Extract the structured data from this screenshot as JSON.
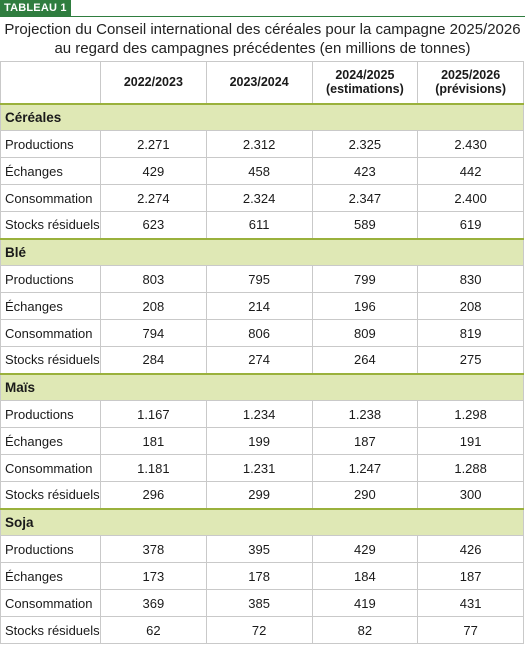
{
  "tag": "TABLEAU 1",
  "title_line1": "Projection du Conseil international des céréales pour la campagne 2025/2026",
  "title_line2": "au regard des campagnes précédentes (en millions de tonnes)",
  "columns": [
    {
      "line1": "2022/2023",
      "line2": ""
    },
    {
      "line1": "2023/2024",
      "line2": ""
    },
    {
      "line1": "2024/2025",
      "line2": "(estimations)"
    },
    {
      "line1": "2025/2026",
      "line2": "(prévisions)"
    }
  ],
  "sections": [
    {
      "name": "Céréales",
      "rows": [
        {
          "label": "Productions",
          "values": [
            "2.271",
            "2.312",
            "2.325",
            "2.430"
          ]
        },
        {
          "label": "Échanges",
          "values": [
            "429",
            "458",
            "423",
            "442"
          ]
        },
        {
          "label": "Consommation",
          "values": [
            "2.274",
            "2.324",
            "2.347",
            "2.400"
          ]
        },
        {
          "label": "Stocks résiduels",
          "values": [
            "623",
            "611",
            "589",
            "619"
          ]
        }
      ]
    },
    {
      "name": "Blé",
      "rows": [
        {
          "label": "Productions",
          "values": [
            "803",
            "795",
            "799",
            "830"
          ]
        },
        {
          "label": "Échanges",
          "values": [
            "208",
            "214",
            "196",
            "208"
          ]
        },
        {
          "label": "Consommation",
          "values": [
            "794",
            "806",
            "809",
            "819"
          ]
        },
        {
          "label": "Stocks résiduels",
          "values": [
            "284",
            "274",
            "264",
            "275"
          ]
        }
      ]
    },
    {
      "name": "Maïs",
      "rows": [
        {
          "label": "Productions",
          "values": [
            "1.167",
            "1.234",
            "1.238",
            "1.298"
          ]
        },
        {
          "label": "Échanges",
          "values": [
            "181",
            "199",
            "187",
            "191"
          ]
        },
        {
          "label": "Consommation",
          "values": [
            "1.181",
            "1.231",
            "1.247",
            "1.288"
          ]
        },
        {
          "label": "Stocks résiduels",
          "values": [
            "296",
            "299",
            "290",
            "300"
          ]
        }
      ]
    },
    {
      "name": "Soja",
      "rows": [
        {
          "label": "Productions",
          "values": [
            "378",
            "395",
            "429",
            "426"
          ]
        },
        {
          "label": "Échanges",
          "values": [
            "173",
            "178",
            "184",
            "187"
          ]
        },
        {
          "label": "Consommation",
          "values": [
            "369",
            "385",
            "419",
            "431"
          ]
        },
        {
          "label": "Stocks résiduels",
          "values": [
            "62",
            "72",
            "82",
            "77"
          ]
        }
      ]
    }
  ],
  "colors": {
    "accent": "#2f7d3f",
    "section_bg": "#dfe8b5",
    "section_rule": "#9ab13c"
  }
}
